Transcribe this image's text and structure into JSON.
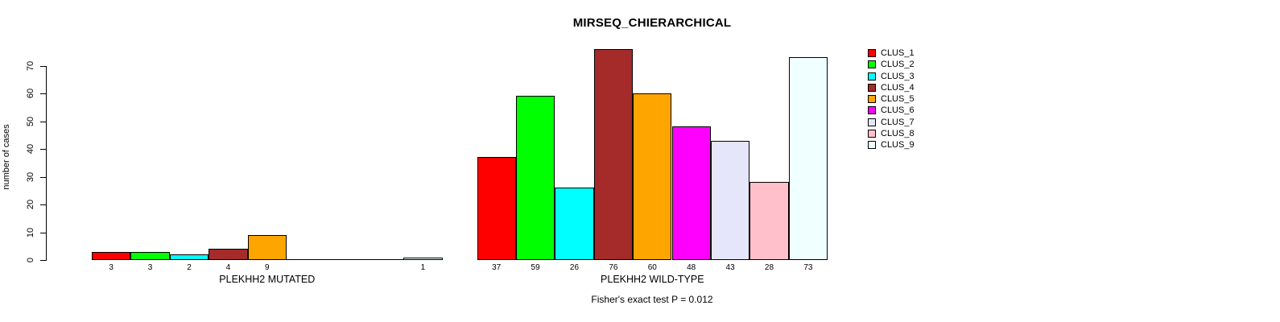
{
  "chart_data": {
    "type": "bar",
    "title": "MIRSEQ_CHIERARCHICAL",
    "ylabel": "number of cases",
    "xlabel": "",
    "ylim": [
      0,
      70
    ],
    "yticks": [
      0,
      10,
      20,
      30,
      40,
      50,
      60,
      70
    ],
    "grid": false,
    "legend_position": "right",
    "series": [
      {
        "name": "CLUS_1",
        "color": "#FF0000"
      },
      {
        "name": "CLUS_2",
        "color": "#00FF00"
      },
      {
        "name": "CLUS_3",
        "color": "#00FFFF"
      },
      {
        "name": "CLUS_4",
        "color": "#A52A2A"
      },
      {
        "name": "CLUS_5",
        "color": "#FFA500"
      },
      {
        "name": "CLUS_6",
        "color": "#FF00FF"
      },
      {
        "name": "CLUS_7",
        "color": "#E6E6FA"
      },
      {
        "name": "CLUS_8",
        "color": "#FFC0CB"
      },
      {
        "name": "CLUS_9",
        "color": "#F0FFFF"
      }
    ],
    "groups": [
      {
        "label": "PLEKHH2 MUTATED",
        "values": [
          3,
          3,
          2,
          4,
          9,
          0,
          0,
          0,
          1
        ]
      },
      {
        "label": "PLEKHH2 WILD-TYPE",
        "values": [
          37,
          59,
          26,
          76,
          60,
          48,
          43,
          28,
          73
        ]
      }
    ],
    "annotation": "Fisher's exact test P = 0.012"
  }
}
